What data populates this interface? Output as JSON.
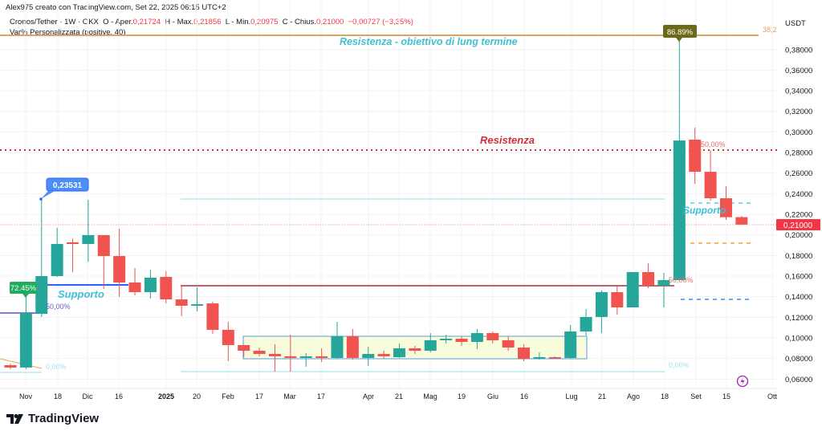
{
  "header": {
    "author_line": "Alex975 creato con TradingView.com, Set 22, 2025 06:15 UTC+2",
    "symbol": "Cronos/Tether · 1W · OKX",
    "open_label": "O - Aper.",
    "open": "0,21724",
    "high_label": "H - Max.",
    "high": "0,21856",
    "low_label": "L - Min.",
    "low": "0,20975",
    "close_label": "C - Chius.",
    "close": "0,21000",
    "change": "−0,00727 (−3,35%)",
    "indicator": "Var% Personalizzata (positive, 40)"
  },
  "price_axis": {
    "currency": "USDT",
    "ticks": [
      "0,38000",
      "0,36000",
      "0,34000",
      "0,32000",
      "0,30000",
      "0,28000",
      "0,26000",
      "0,24000",
      "0,22000",
      "0,20000",
      "0,18000",
      "0,16000",
      "0,14000",
      "0,12000",
      "0,10000",
      "0,08000",
      "0,06000"
    ],
    "last_price_label": "0,21000"
  },
  "time_axis": {
    "ticks": [
      "Nov",
      "18",
      "Dic",
      "16",
      "2025",
      "20",
      "Feb",
      "17",
      "Mar",
      "17",
      "Apr",
      "21",
      "Mag",
      "19",
      "Giu",
      "16",
      "Lug",
      "21",
      "Ago",
      "18",
      "Set",
      "15",
      "Ott"
    ]
  },
  "annotations": {
    "long_term_resistance": "Resistenza - obiettivo di lung termine",
    "resistance": "Resistenza",
    "support_left": "Supporto",
    "support_right": "Supporto",
    "fib_382": "38,2",
    "pct_50_left": "50,00%",
    "pct_50_mid": "50,00%",
    "pct_50_right": "50,00%",
    "pct_0_left": "0,00%",
    "pct_0_right": "0,00%",
    "callout_low": "72.45%",
    "callout_high_price": "0,23531",
    "callout_peak": "86.89%"
  },
  "colors": {
    "up": "#26a69a",
    "down": "#f05350",
    "resistance": "#d0303a",
    "support": "#2962ff",
    "label_cyan": "#3ec1d3",
    "orange": "#e2a35a",
    "range_fill": "#f8fbdc",
    "range_border": "#5b9bd5"
  },
  "footer": {
    "brand": "TradingView"
  },
  "chart_data": {
    "type": "candlestick",
    "timeframe": "1W",
    "ylim": [
      0.05,
      0.4
    ],
    "candles": [
      {
        "t": "2024-10-28",
        "o": 0.0735,
        "h": 0.075,
        "l": 0.0696,
        "c": 0.0712
      },
      {
        "t": "2024-11-04",
        "o": 0.0712,
        "h": 0.146,
        "l": 0.0696,
        "c": 0.1242
      },
      {
        "t": "2024-11-11",
        "o": 0.1234,
        "h": 0.23531,
        "l": 0.1203,
        "c": 0.16
      },
      {
        "t": "2024-11-18",
        "o": 0.16,
        "h": 0.2068,
        "l": 0.1592,
        "c": 0.1912
      },
      {
        "t": "2024-11-25",
        "o": 0.1928,
        "h": 0.1966,
        "l": 0.1639,
        "c": 0.1912
      },
      {
        "t": "2024-12-02",
        "o": 0.1912,
        "h": 0.2341,
        "l": 0.174,
        "c": 0.1998
      },
      {
        "t": "2024-12-09",
        "o": 0.1998,
        "h": 0.1998,
        "l": 0.1475,
        "c": 0.1795
      },
      {
        "t": "2024-12-16",
        "o": 0.1795,
        "h": 0.206,
        "l": 0.1398,
        "c": 0.1538
      },
      {
        "t": "2024-12-23",
        "o": 0.1538,
        "h": 0.1678,
        "l": 0.1413,
        "c": 0.1444
      },
      {
        "t": "2024-12-30",
        "o": 0.1444,
        "h": 0.1663,
        "l": 0.1382,
        "c": 0.1585
      },
      {
        "t": "2025-01-06",
        "o": 0.1592,
        "h": 0.1647,
        "l": 0.1335,
        "c": 0.1374
      },
      {
        "t": "2025-01-13",
        "o": 0.1374,
        "h": 0.1499,
        "l": 0.1211,
        "c": 0.1312
      },
      {
        "t": "2025-01-20",
        "o": 0.1312,
        "h": 0.1491,
        "l": 0.1257,
        "c": 0.1327
      },
      {
        "t": "2025-01-27",
        "o": 0.1335,
        "h": 0.1351,
        "l": 0.1039,
        "c": 0.1078
      },
      {
        "t": "2025-02-03",
        "o": 0.1078,
        "h": 0.1156,
        "l": 0.0774,
        "c": 0.093
      },
      {
        "t": "2025-02-10",
        "o": 0.093,
        "h": 0.093,
        "l": 0.0813,
        "c": 0.0875
      },
      {
        "t": "2025-02-17",
        "o": 0.0875,
        "h": 0.0906,
        "l": 0.0821,
        "c": 0.0844
      },
      {
        "t": "2025-02-24",
        "o": 0.0844,
        "h": 0.0938,
        "l": 0.0673,
        "c": 0.0821
      },
      {
        "t": "2025-03-03",
        "o": 0.0821,
        "h": 0.1031,
        "l": 0.0673,
        "c": 0.0805
      },
      {
        "t": "2025-03-10",
        "o": 0.0805,
        "h": 0.0852,
        "l": 0.0719,
        "c": 0.0821
      },
      {
        "t": "2025-03-17",
        "o": 0.0821,
        "h": 0.0899,
        "l": 0.0766,
        "c": 0.0805
      },
      {
        "t": "2025-03-24",
        "o": 0.0805,
        "h": 0.1156,
        "l": 0.0797,
        "c": 0.1016
      },
      {
        "t": "2025-03-31",
        "o": 0.1016,
        "h": 0.1086,
        "l": 0.079,
        "c": 0.0805
      },
      {
        "t": "2025-04-07",
        "o": 0.0805,
        "h": 0.0914,
        "l": 0.0727,
        "c": 0.0844
      },
      {
        "t": "2025-04-14",
        "o": 0.0844,
        "h": 0.0875,
        "l": 0.0797,
        "c": 0.0821
      },
      {
        "t": "2025-04-21",
        "o": 0.0813,
        "h": 0.0945,
        "l": 0.0805,
        "c": 0.0899
      },
      {
        "t": "2025-04-28",
        "o": 0.0899,
        "h": 0.0922,
        "l": 0.0844,
        "c": 0.0875
      },
      {
        "t": "2025-05-05",
        "o": 0.0875,
        "h": 0.1047,
        "l": 0.0859,
        "c": 0.0977
      },
      {
        "t": "2025-05-12",
        "o": 0.0977,
        "h": 0.1031,
        "l": 0.0945,
        "c": 0.0992
      },
      {
        "t": "2025-05-19",
        "o": 0.0992,
        "h": 0.1016,
        "l": 0.0922,
        "c": 0.0961
      },
      {
        "t": "2025-05-26",
        "o": 0.0961,
        "h": 0.1086,
        "l": 0.0891,
        "c": 0.1047
      },
      {
        "t": "2025-06-02",
        "o": 0.1047,
        "h": 0.1062,
        "l": 0.0945,
        "c": 0.0977
      },
      {
        "t": "2025-06-09",
        "o": 0.0977,
        "h": 0.1016,
        "l": 0.0875,
        "c": 0.0906
      },
      {
        "t": "2025-06-16",
        "o": 0.0906,
        "h": 0.0938,
        "l": 0.0774,
        "c": 0.0797
      },
      {
        "t": "2025-06-23",
        "o": 0.0797,
        "h": 0.0859,
        "l": 0.079,
        "c": 0.0813
      },
      {
        "t": "2025-06-30",
        "o": 0.0813,
        "h": 0.0821,
        "l": 0.0797,
        "c": 0.0805
      },
      {
        "t": "2025-07-07",
        "o": 0.0805,
        "h": 0.1125,
        "l": 0.0797,
        "c": 0.1062
      },
      {
        "t": "2025-07-14",
        "o": 0.1062,
        "h": 0.1281,
        "l": 0.1023,
        "c": 0.1203
      },
      {
        "t": "2025-07-21",
        "o": 0.1203,
        "h": 0.146,
        "l": 0.1047,
        "c": 0.1444
      },
      {
        "t": "2025-07-28",
        "o": 0.1444,
        "h": 0.1499,
        "l": 0.1226,
        "c": 0.1296
      },
      {
        "t": "2025-08-04",
        "o": 0.1296,
        "h": 0.1639,
        "l": 0.1296,
        "c": 0.1639
      },
      {
        "t": "2025-08-11",
        "o": 0.1639,
        "h": 0.1725,
        "l": 0.1483,
        "c": 0.1507
      },
      {
        "t": "2025-08-18",
        "o": 0.1507,
        "h": 0.1631,
        "l": 0.1296,
        "c": 0.1561
      },
      {
        "t": "2025-08-25",
        "o": 0.1561,
        "h": 0.3907,
        "l": 0.1553,
        "c": 0.2917
      },
      {
        "t": "2025-09-01",
        "o": 0.2925,
        "h": 0.3042,
        "l": 0.2496,
        "c": 0.2613
      },
      {
        "t": "2025-09-08",
        "o": 0.2613,
        "h": 0.2824,
        "l": 0.2333,
        "c": 0.2356
      },
      {
        "t": "2025-09-15",
        "o": 0.2356,
        "h": 0.2473,
        "l": 0.2146,
        "c": 0.2172
      },
      {
        "t": "2025-09-22",
        "o": 0.21724,
        "h": 0.21856,
        "l": 0.20975,
        "c": 0.21
      }
    ]
  }
}
